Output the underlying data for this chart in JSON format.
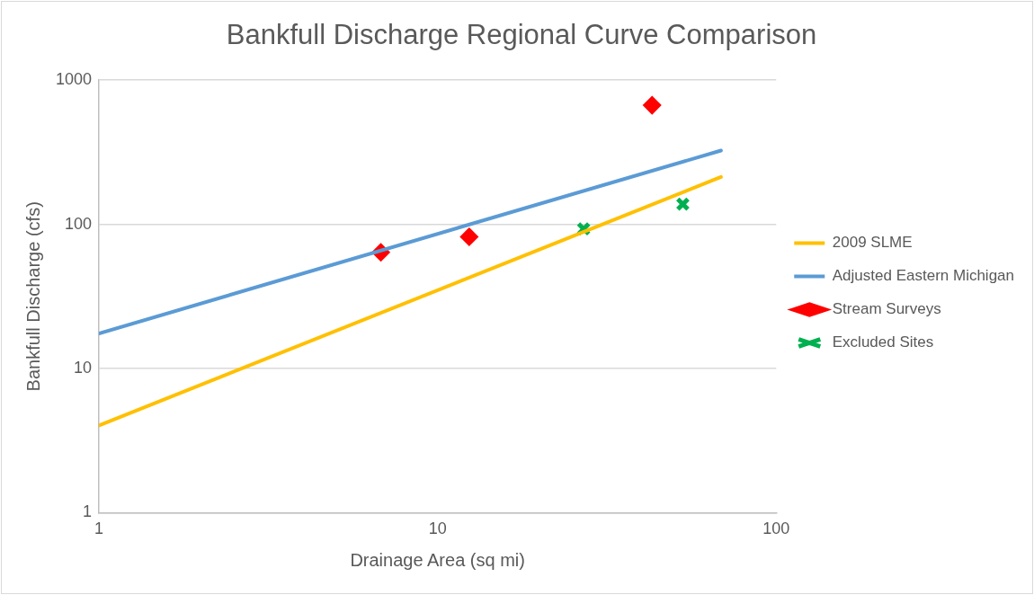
{
  "chart_data": {
    "type": "line",
    "title": "Bankfull Discharge Regional Curve Comparison",
    "xlabel": "Drainage Area (sq mi)",
    "ylabel": "Bankfull Discharge (cfs)",
    "log": "xy",
    "xlim": [
      1,
      100
    ],
    "xticks": [
      1,
      10,
      100
    ],
    "ylim": [
      1,
      1000
    ],
    "yticks": [
      1,
      10,
      100,
      1000
    ],
    "grid": "y",
    "legend": "right",
    "series": [
      {
        "name": "2009 SLME",
        "color": "#ffc000",
        "x": [
          1,
          68.7
        ],
        "values": [
          4.02,
          213
        ],
        "marker": "none"
      },
      {
        "name": "Adjusted Eastern Michigan",
        "color": "#5b9bd5",
        "x": [
          1,
          68.7
        ],
        "values": [
          17.5,
          325
        ],
        "marker": "none"
      },
      {
        "name": "Stream Surveys",
        "type": "scatter",
        "color": "#ff0000",
        "x": [
          6.8,
          12.4,
          43
        ],
        "values": [
          64,
          82,
          670
        ],
        "marker": "diamond"
      },
      {
        "name": "Excluded Sites",
        "type": "scatter",
        "color": "#00b050",
        "x": [
          27,
          53
        ],
        "values": [
          93,
          138
        ],
        "marker": "cross"
      }
    ]
  }
}
